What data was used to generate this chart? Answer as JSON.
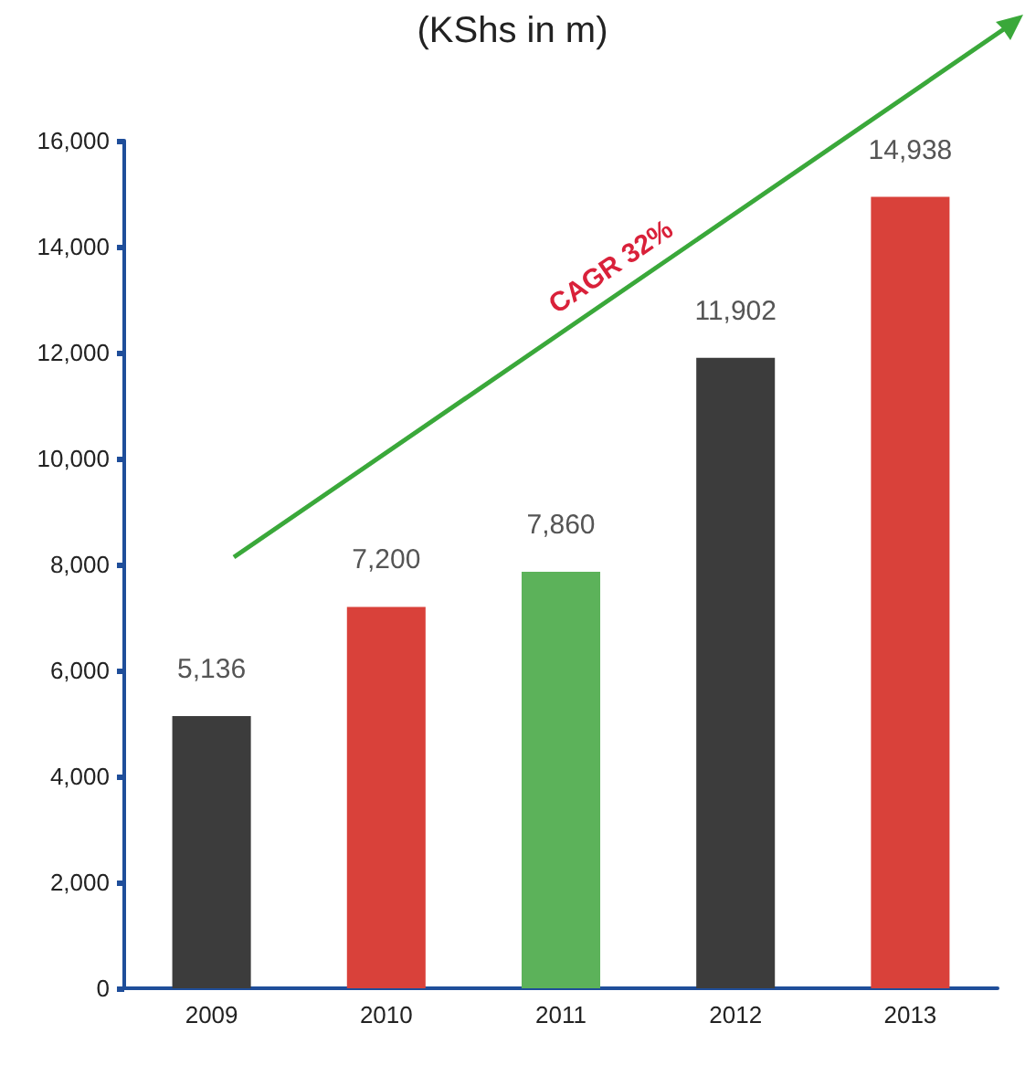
{
  "chart_data": {
    "type": "bar",
    "title": "(KShs in m)",
    "categories": [
      "2009",
      "2010",
      "2011",
      "2012",
      "2013"
    ],
    "values": [
      5136,
      7200,
      7860,
      11902,
      14938
    ],
    "colors": [
      "#3c3c3c",
      "#d9413a",
      "#5cb25a",
      "#3c3c3c",
      "#d9413a"
    ],
    "value_labels": [
      "5,136",
      "7,200",
      "7,860",
      "11,902",
      "14,938"
    ],
    "ylim": [
      0,
      16000
    ],
    "yticks": [
      {
        "value": 0,
        "label": "0"
      },
      {
        "value": 2000,
        "label": "2,000"
      },
      {
        "value": 4000,
        "label": "4,000"
      },
      {
        "value": 6000,
        "label": "6,000"
      },
      {
        "value": 8000,
        "label": "8,000"
      },
      {
        "value": 10000,
        "label": "10,000"
      },
      {
        "value": 12000,
        "label": "12,000"
      },
      {
        "value": 14000,
        "label": "14,000"
      },
      {
        "value": 16000,
        "label": "16,000"
      }
    ],
    "annotations": [
      "CAGR 32%"
    ],
    "grid": false
  }
}
